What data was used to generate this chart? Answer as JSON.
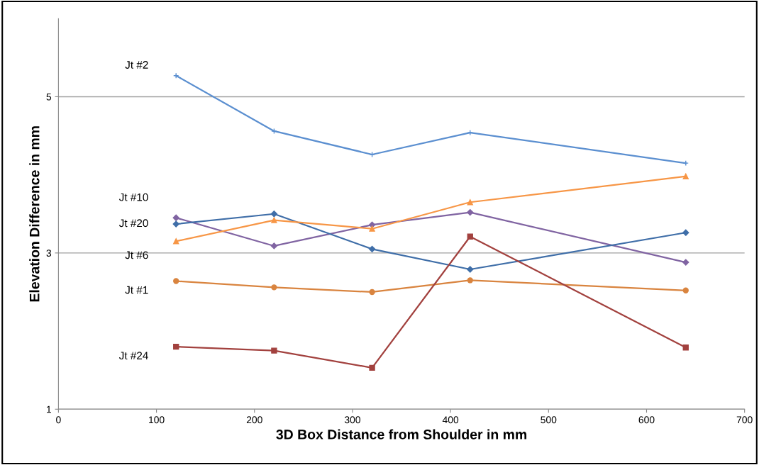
{
  "chart_data": {
    "type": "line",
    "xlabel": "3D Box Distance from Shoulder in mm",
    "ylabel": "Elevation Difference in mm",
    "x": [
      120,
      220,
      320,
      420,
      640
    ],
    "series": [
      {
        "name": "Jt #2",
        "color": "#5b8fd0",
        "marker": "cross",
        "values": [
          5.27,
          4.56,
          4.26,
          4.54,
          4.15
        ]
      },
      {
        "name": "Jt #10",
        "color": "#8064a2",
        "marker": "diamond",
        "values": [
          3.45,
          3.09,
          3.36,
          3.52,
          2.88
        ]
      },
      {
        "name": "Jt #20",
        "color": "#3f6ea8",
        "marker": "diamond",
        "values": [
          3.37,
          3.5,
          3.05,
          2.79,
          3.26
        ]
      },
      {
        "name": "Jt #6",
        "color": "#f79646",
        "marker": "triangle",
        "values": [
          3.15,
          3.42,
          3.31,
          3.65,
          3.98
        ]
      },
      {
        "name": "Jt #1",
        "color": "#d9843f",
        "marker": "circle",
        "values": [
          2.64,
          2.56,
          2.5,
          2.65,
          2.52
        ]
      },
      {
        "name": "Jt #24",
        "color": "#a2413e",
        "marker": "square",
        "values": [
          1.8,
          1.75,
          1.53,
          3.21,
          1.79
        ]
      }
    ],
    "xlim": [
      0,
      700
    ],
    "xticks": [
      0,
      100,
      200,
      300,
      400,
      500,
      600,
      700
    ],
    "ylim": [
      1,
      6
    ],
    "yticks": [
      1,
      3,
      5
    ],
    "grid": "y",
    "legend": false
  }
}
